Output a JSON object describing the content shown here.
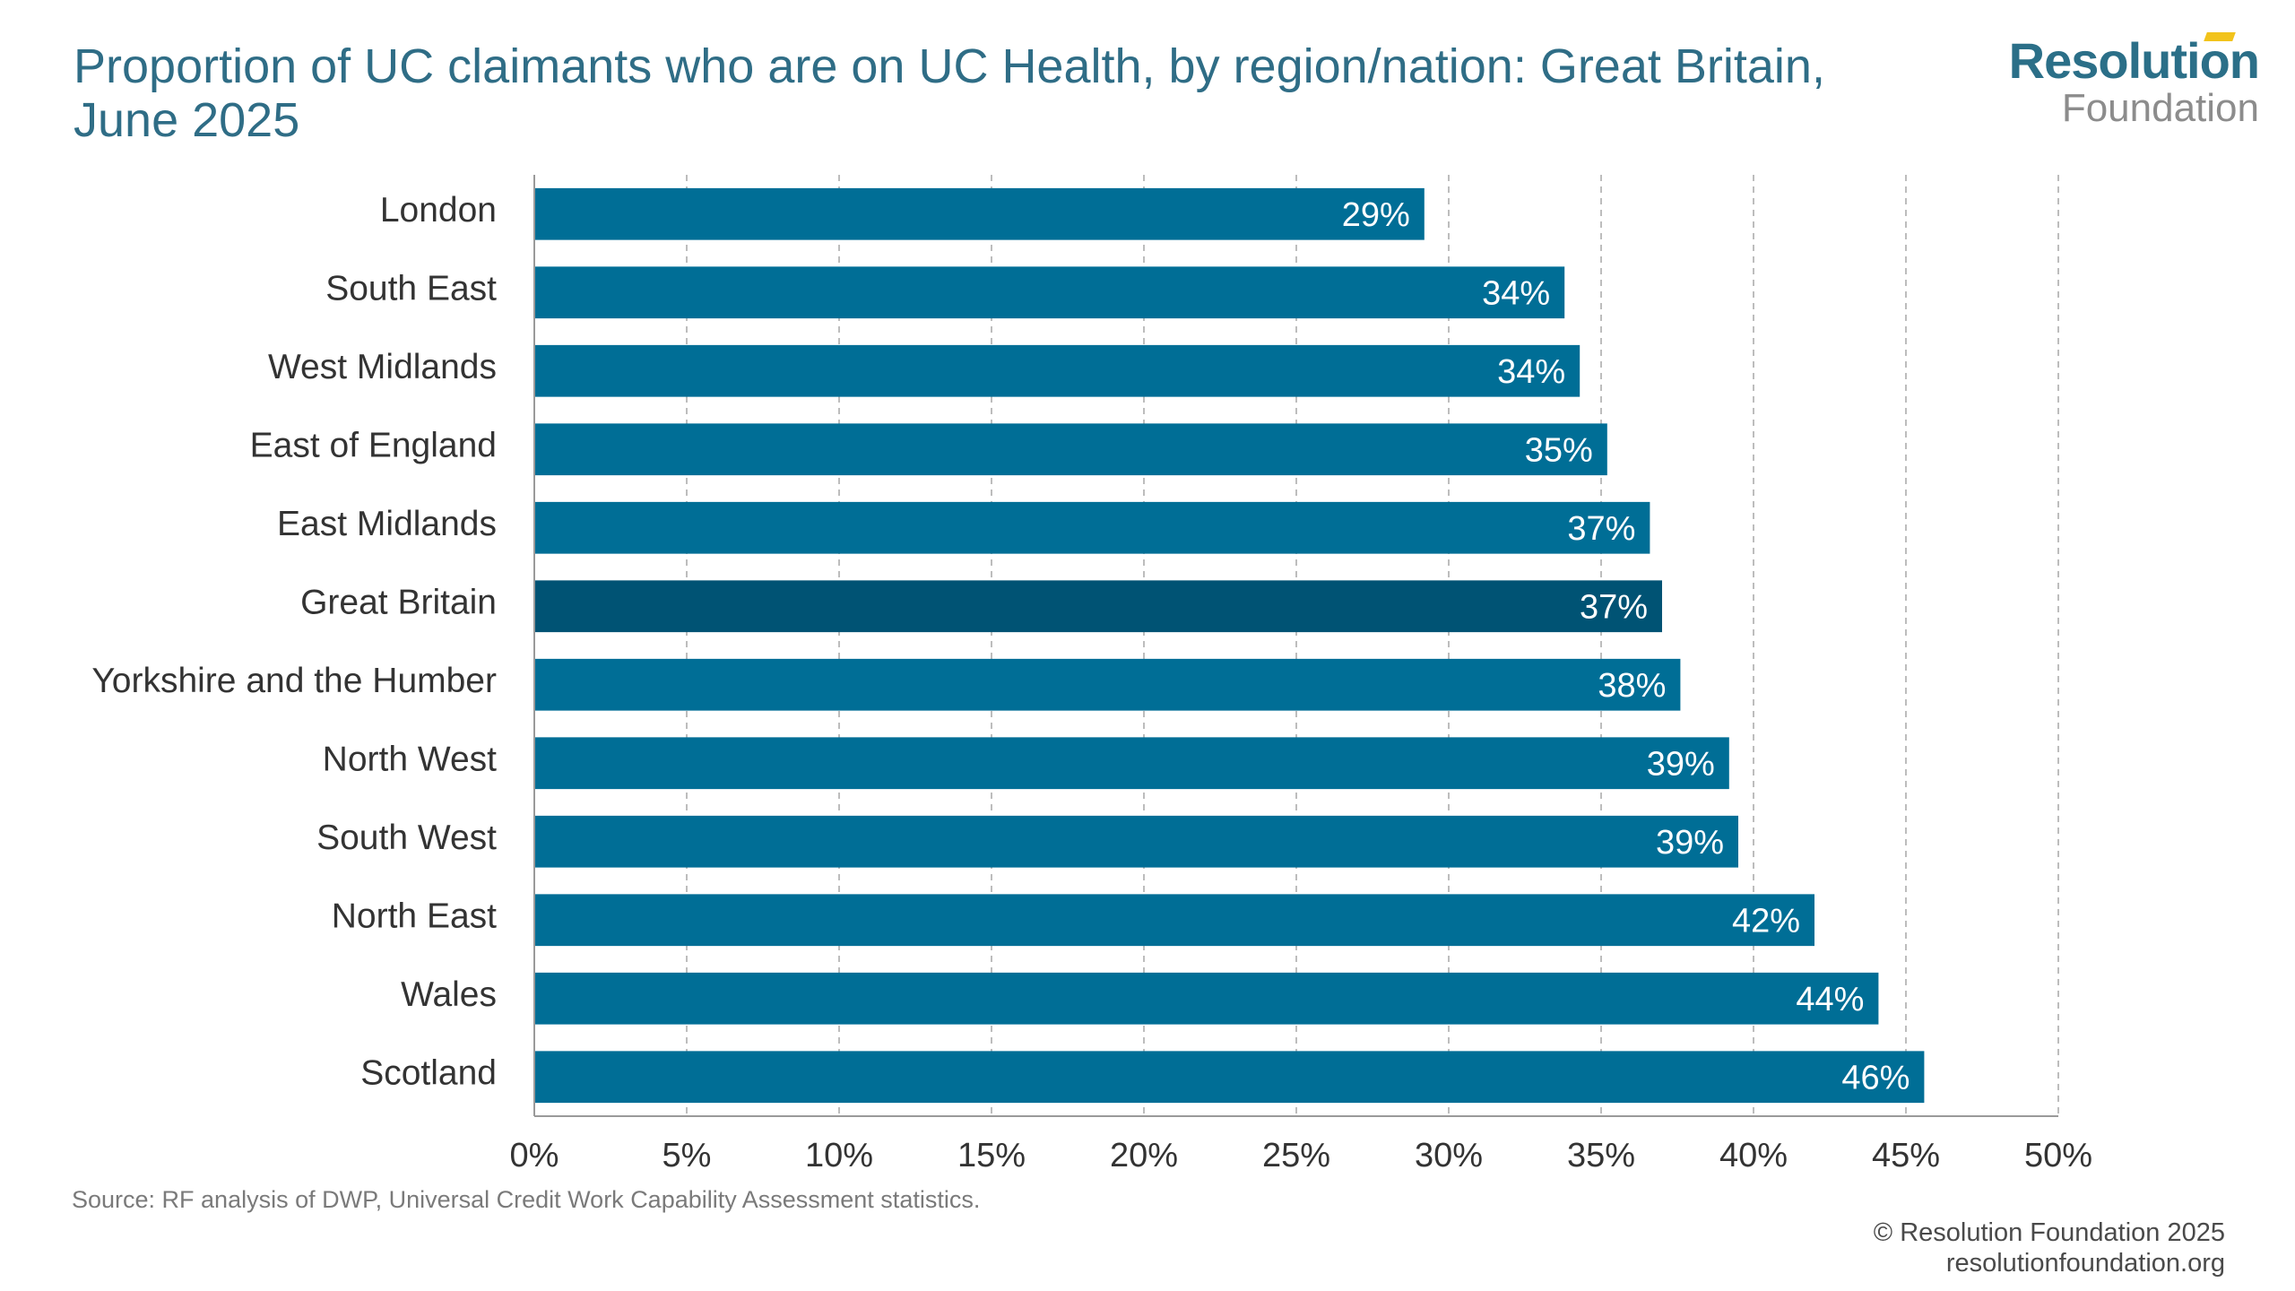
{
  "header": {
    "title": "Proportion of UC claimants who are on UC Health, by region/nation: Great Britain, June 2025"
  },
  "logo": {
    "line1": "Resolution",
    "line2": "Foundation",
    "accent_color": "#f2c31b"
  },
  "footer": {
    "source": "Source: RF analysis of DWP, Universal Credit Work Capability Assessment statistics.",
    "copyright": "© Resolution Foundation 2025",
    "website": "resolutionfoundation.org"
  },
  "chart_data": {
    "type": "bar",
    "orientation": "horizontal",
    "categories": [
      "London",
      "South East",
      "West Midlands",
      "East of England",
      "East Midlands",
      "Great Britain",
      "Yorkshire and the Humber",
      "North West",
      "South West",
      "North East",
      "Wales",
      "Scotland"
    ],
    "values": [
      29.2,
      33.8,
      34.3,
      35.2,
      36.6,
      37.0,
      37.6,
      39.2,
      39.5,
      42.0,
      44.1,
      45.6
    ],
    "data_labels": [
      "29%",
      "34%",
      "34%",
      "35%",
      "37%",
      "37%",
      "38%",
      "39%",
      "39%",
      "42%",
      "44%",
      "46%"
    ],
    "highlight": "Great Britain",
    "xlim": [
      0,
      50
    ],
    "x_ticks": [
      0,
      5,
      10,
      15,
      20,
      25,
      30,
      35,
      40,
      45,
      50
    ],
    "x_tick_labels": [
      "0%",
      "5%",
      "10%",
      "15%",
      "20%",
      "25%",
      "30%",
      "35%",
      "40%",
      "45%",
      "50%"
    ],
    "xlabel": "",
    "ylabel": "",
    "grid": "vertical-dashed",
    "colors": {
      "bar": "#006e96",
      "highlight_bar": "#005374",
      "grid": "#bdbdbd",
      "label_text": "#ffffff"
    }
  }
}
